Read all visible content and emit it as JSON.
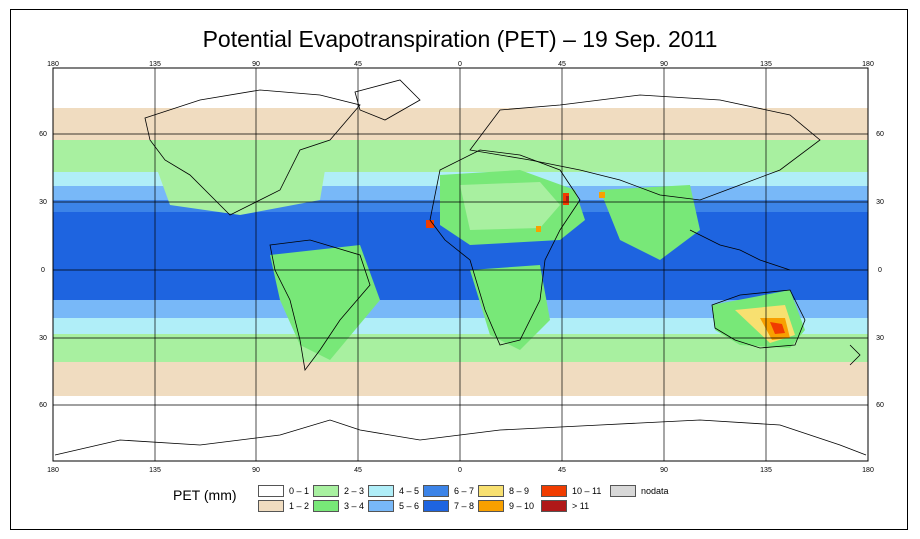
{
  "title": "Potential Evapotranspiration (PET) – 19 Sep. 2011",
  "axes": {
    "top_lon": [
      "180",
      "135",
      "90",
      "45",
      "0",
      "45",
      "90",
      "135",
      "180"
    ],
    "bottom_lon": [
      "180",
      "135",
      "90",
      "45",
      "0",
      "45",
      "90",
      "135",
      "180"
    ],
    "left_lat": [
      "60",
      "30",
      "0",
      "30",
      "60"
    ],
    "right_lat": [
      "60",
      "30",
      "0",
      "30",
      "60"
    ]
  },
  "legend": {
    "title": "PET (mm)",
    "items": [
      {
        "label": "0 – 1",
        "color": "#ffffff"
      },
      {
        "label": "1 – 2",
        "color": "#f0dcc0"
      },
      {
        "label": "2 – 3",
        "color": "#a8f0a0"
      },
      {
        "label": "3 – 4",
        "color": "#78e878"
      },
      {
        "label": "4 – 5",
        "color": "#b0eef8"
      },
      {
        "label": "5 – 6",
        "color": "#78b8f8"
      },
      {
        "label": "6 – 7",
        "color": "#3c84e8"
      },
      {
        "label": "7 – 8",
        "color": "#1e64e0"
      },
      {
        "label": "8 – 9",
        "color": "#f8e070"
      },
      {
        "label": "9 – 10",
        "color": "#f8a000"
      },
      {
        "label": "10 – 11",
        "color": "#f03c00"
      },
      {
        "label": "> 11",
        "color": "#b01818"
      },
      {
        "label": "nodata",
        "color": "#d8d8d8"
      }
    ]
  },
  "colors": {
    "ocean_tropic": "#1e64e0",
    "ocean_mid": "#3c84e8",
    "ocean_sub": "#78b8f8",
    "coast": "#000000"
  }
}
